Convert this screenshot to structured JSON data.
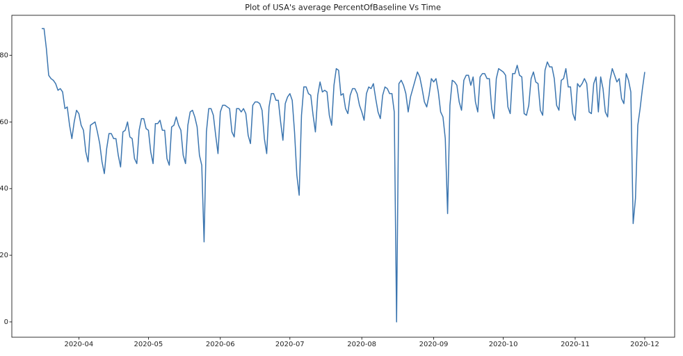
{
  "chart_data": {
    "type": "line",
    "title": "Plot of USA's average PercentOfBaseline Vs Time",
    "categories": [
      null,
      null,
      null,
      null,
      null,
      null,
      null,
      null,
      null,
      null,
      null,
      null,
      null,
      null,
      null,
      null,
      "2020-04",
      null,
      null,
      null,
      null,
      null,
      null,
      null,
      null,
      null,
      null,
      null,
      null,
      null,
      null,
      null,
      null,
      null,
      null,
      null,
      null,
      null,
      null,
      null,
      null,
      null,
      null,
      null,
      null,
      null,
      "2020-05",
      null,
      null,
      null,
      null,
      null,
      null,
      null,
      null,
      null,
      null,
      null,
      null,
      null,
      null,
      null,
      null,
      null,
      null,
      null,
      null,
      null,
      null,
      null,
      null,
      null,
      null,
      null,
      null,
      null,
      null,
      "2020-06",
      null,
      null,
      null,
      null,
      null,
      null,
      null,
      null,
      null,
      null,
      null,
      null,
      null,
      null,
      null,
      null,
      null,
      null,
      null,
      null,
      null,
      null,
      null,
      null,
      null,
      null,
      null,
      null,
      null,
      "2020-07",
      null,
      null,
      null,
      null,
      null,
      null,
      null,
      null,
      null,
      null,
      null,
      null,
      null,
      null,
      null,
      null,
      null,
      null,
      null,
      null,
      null,
      null,
      null,
      null,
      null,
      null,
      null,
      null,
      null,
      null,
      "2020-08",
      null,
      null,
      null,
      null,
      null,
      null,
      null,
      null,
      null,
      null,
      null,
      null,
      null,
      null,
      null,
      null,
      null,
      null,
      null,
      null,
      null,
      null,
      null,
      null,
      null,
      null,
      null,
      null,
      null,
      null,
      "2020-09",
      null,
      null,
      null,
      null,
      null,
      null,
      null,
      null,
      null,
      null,
      null,
      null,
      null,
      null,
      null,
      null,
      null,
      null,
      null,
      null,
      null,
      null,
      null,
      null,
      null,
      null,
      null,
      null,
      null,
      "2020-10",
      null,
      null,
      null,
      null,
      null,
      null,
      null,
      null,
      null,
      null,
      null,
      null,
      null,
      null,
      null,
      null,
      null,
      null,
      null,
      null,
      null,
      null,
      null,
      null,
      null,
      null,
      null,
      null,
      null,
      null,
      "2020-11",
      null,
      null,
      null,
      null,
      null,
      null,
      null,
      null,
      null,
      null,
      null,
      null,
      null,
      null,
      null,
      null,
      null,
      null,
      null,
      null,
      null,
      null,
      null,
      null,
      null,
      null,
      null,
      null,
      null,
      "2020-12"
    ],
    "values": [
      88,
      88,
      82,
      74,
      73,
      72.5,
      71.5,
      69.5,
      70,
      69,
      64,
      64.5,
      59,
      55,
      60,
      63.5,
      62.5,
      59,
      57.5,
      51,
      48,
      59,
      59.5,
      60,
      57,
      53.5,
      48,
      44.5,
      52,
      56.5,
      56.5,
      55,
      55,
      50,
      46.5,
      57,
      57.5,
      60,
      55.5,
      55,
      49,
      47.5,
      57.5,
      61,
      61,
      58,
      57.5,
      51,
      47.5,
      59.5,
      59.5,
      60.5,
      57.5,
      57.5,
      49,
      47,
      58.5,
      59,
      61.5,
      59,
      57.5,
      50,
      47.5,
      59,
      63,
      63.5,
      61.5,
      58.5,
      50,
      47,
      24,
      57,
      64,
      64,
      62,
      56,
      50.5,
      63,
      65,
      65,
      64.5,
      64,
      57,
      55.5,
      64,
      64,
      63,
      64,
      62.5,
      56,
      53.5,
      65,
      66,
      66,
      65.5,
      63.5,
      55,
      50.5,
      64.5,
      68.5,
      68.5,
      66.5,
      66.5,
      60,
      54.5,
      65.5,
      67.5,
      68.5,
      66.5,
      57,
      44,
      38,
      62,
      70.5,
      70.5,
      68.5,
      68,
      62,
      57,
      68,
      72,
      69,
      69.5,
      69,
      62,
      59,
      71,
      76,
      75.5,
      68,
      68.5,
      64,
      62.5,
      68,
      70,
      70,
      68.5,
      65,
      63,
      60.5,
      68.5,
      70.5,
      70,
      71.5,
      67,
      63,
      61,
      68,
      70.5,
      70,
      68.5,
      68.5,
      63,
      0,
      71.5,
      72.5,
      71,
      68.5,
      63,
      67.5,
      70,
      72.5,
      75,
      73.5,
      70,
      66,
      64.5,
      68,
      73,
      72,
      73,
      69,
      63,
      61.5,
      55,
      32.5,
      65,
      72.5,
      72,
      71,
      66,
      63.5,
      72.5,
      74,
      74,
      71,
      73.5,
      66,
      63,
      73.5,
      74.5,
      74.5,
      73,
      73,
      64,
      61,
      73,
      76,
      75.5,
      75,
      74,
      64.5,
      62.5,
      74.5,
      74.5,
      77,
      74,
      73.5,
      62.5,
      62,
      65,
      73,
      75,
      72,
      71.5,
      63.5,
      62,
      75.5,
      78,
      76.5,
      76.5,
      73,
      65,
      63.5,
      72.5,
      73,
      76,
      70.5,
      70.5,
      62.5,
      60.5,
      71.5,
      70.5,
      71.5,
      73,
      71.5,
      63,
      62.5,
      71.5,
      73.5,
      63,
      73.5,
      70,
      63,
      61.5,
      72.5,
      76,
      74,
      72,
      73,
      67,
      65.5,
      74.5,
      72.5,
      69,
      29.5,
      37,
      59,
      64,
      70,
      75
    ],
    "color": "#3b75af",
    "ylim": [
      -4.6,
      92
    ],
    "yticks": [
      0,
      20,
      40,
      60,
      80
    ],
    "grid": false
  }
}
